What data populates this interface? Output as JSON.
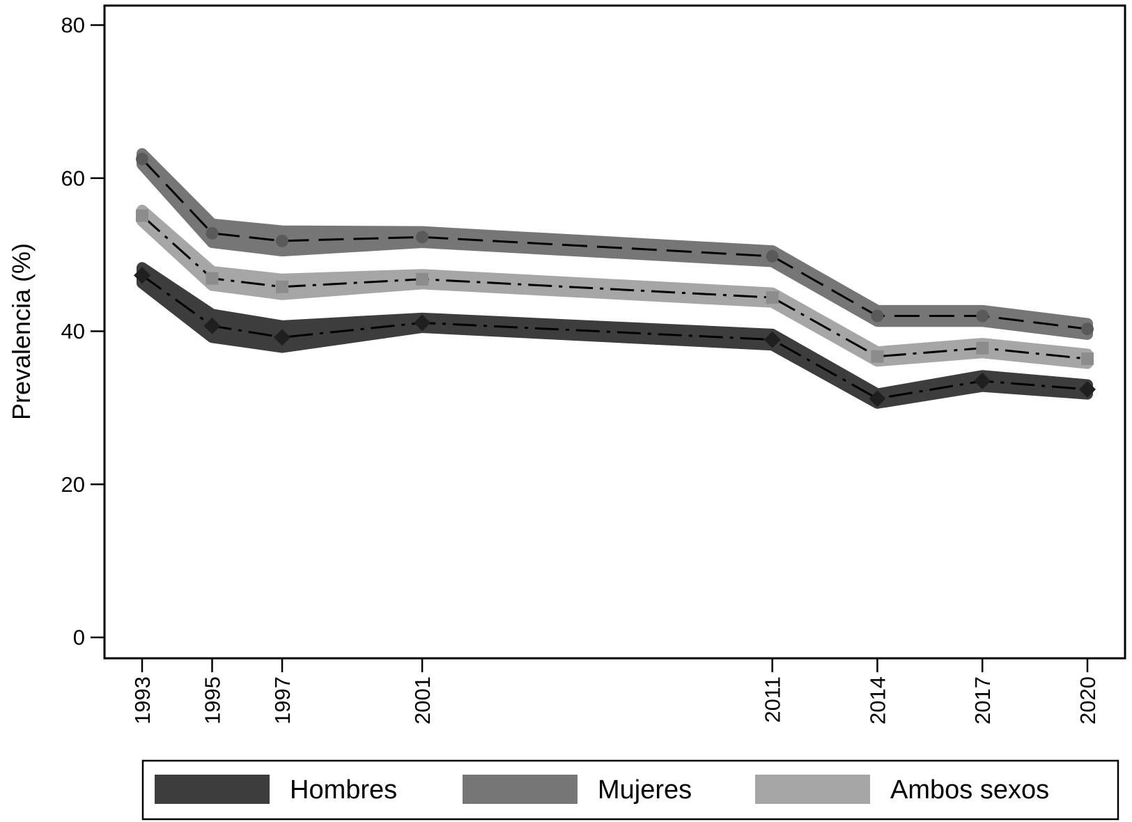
{
  "chart_data": {
    "type": "line",
    "title": "",
    "xlabel": "",
    "ylabel": "Prevalencia (%)",
    "x": [
      1993,
      1995,
      1997,
      2001,
      2011,
      2014,
      2017,
      2020
    ],
    "xlim": [
      1992,
      2021
    ],
    "ylim": [
      0,
      80
    ],
    "yticks": [
      0,
      20,
      40,
      60,
      80
    ],
    "grid": false,
    "legend_position": "bottom",
    "series": [
      {
        "name": "Hombres",
        "values": [
          47.3,
          40.7,
          39.2,
          41.1,
          38.9,
          31.2,
          33.5,
          32.4
        ],
        "lower": [
          46.3,
          39.2,
          37.9,
          40.5,
          38.2,
          30.6,
          32.8,
          31.8
        ],
        "upper": [
          48.3,
          42.2,
          40.7,
          41.7,
          39.6,
          31.8,
          34.2,
          33.0
        ],
        "color": "#3d3d3d",
        "marker": "diamond",
        "dash": "dashdot"
      },
      {
        "name": "Mujeres",
        "values": [
          62.5,
          52.8,
          51.8,
          52.3,
          49.8,
          42.0,
          42.0,
          40.3
        ],
        "lower": [
          61.8,
          51.6,
          50.5,
          51.6,
          49.1,
          41.3,
          41.3,
          39.6
        ],
        "upper": [
          63.2,
          54.0,
          53.1,
          53.0,
          50.5,
          42.7,
          42.7,
          41.0
        ],
        "color": "#767676",
        "marker": "circle",
        "dash": "longdash"
      },
      {
        "name": "Ambos sexos",
        "values": [
          55.1,
          46.9,
          45.8,
          46.8,
          44.4,
          36.7,
          37.8,
          36.4
        ],
        "lower": [
          54.4,
          46.0,
          44.8,
          46.2,
          43.8,
          36.1,
          37.2,
          35.8
        ],
        "upper": [
          55.8,
          47.8,
          46.8,
          47.4,
          45.0,
          37.3,
          38.4,
          37.0
        ],
        "color": "#a6a6a6",
        "marker": "square",
        "dash": "dashdot"
      }
    ]
  }
}
